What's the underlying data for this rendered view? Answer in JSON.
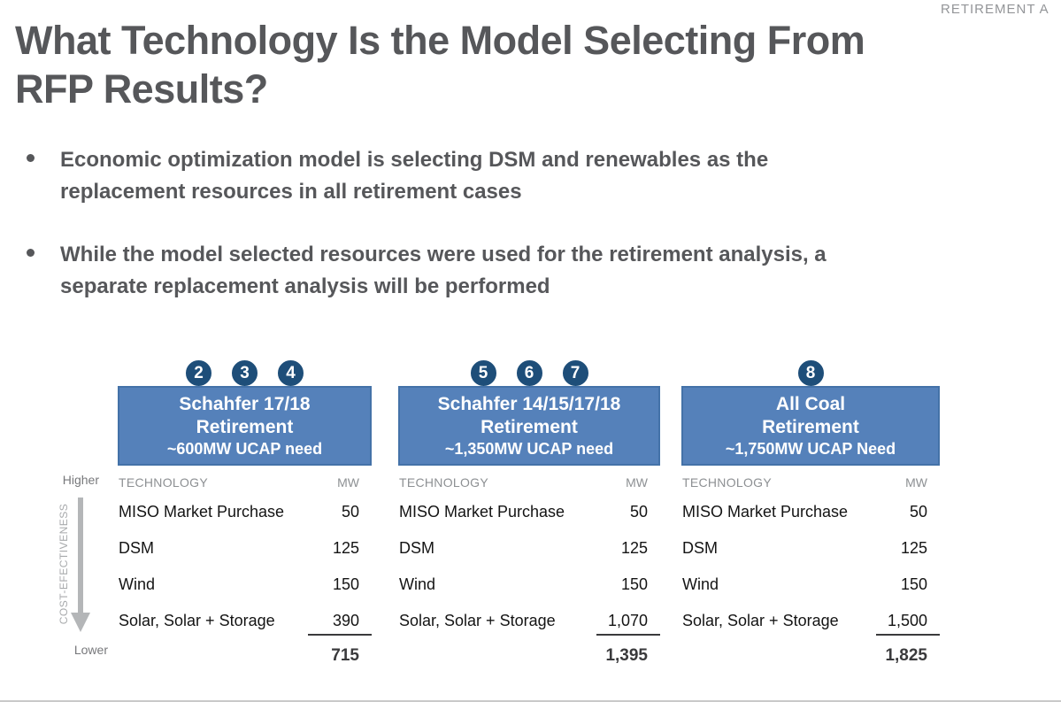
{
  "corner_label": "RETIREMENT A",
  "title": {
    "line1": "What Technology Is the Model Selecting From",
    "line2": "RFP Results?"
  },
  "bullets": [
    {
      "line1": "Economic optimization model is selecting DSM and renewables as the",
      "line2": "replacement resources in all retirement cases",
      "full_text": "Economic optimization model is selecting DSM and renewables as the replacement resources in all retirement cases"
    },
    {
      "line1": "While the model selected resources were used for the retirement analysis, a",
      "line2": "separate replacement analysis will be performed",
      "full_text": "While the model selected resources were used for the retirement analysis, a separate replacement analysis will be performed"
    }
  ],
  "axis": {
    "higher": "Higher",
    "lower": "Lower",
    "vertical_label": "COST-EFECTIVENESS"
  },
  "colors": {
    "header_blue": "#5581ba",
    "header_blue_border": "#4472a8",
    "badge_navy": "#1e4e79",
    "title_gray": "#56575a",
    "muted_gray": "#8d9093"
  },
  "tables": [
    {
      "badges": [
        "2",
        "3",
        "4"
      ],
      "header": {
        "line1": "Schahfer 17/18",
        "line2": "Retirement",
        "line3": "~600MW UCAP need"
      },
      "col_headers": {
        "technology": "TECHNOLOGY",
        "mw": "MW"
      },
      "rows": [
        {
          "technology": "MISO Market Purchase",
          "mw": "50"
        },
        {
          "technology": "DSM",
          "mw": "125"
        },
        {
          "technology": "Wind",
          "mw": "150"
        },
        {
          "technology": "Solar, Solar + Storage",
          "mw": "390"
        }
      ],
      "total": "715"
    },
    {
      "badges": [
        "5",
        "6",
        "7"
      ],
      "header": {
        "line1": "Schahfer 14/15/17/18",
        "line2": "Retirement",
        "line3": "~1,350MW UCAP need"
      },
      "col_headers": {
        "technology": "TECHNOLOGY",
        "mw": "MW"
      },
      "rows": [
        {
          "technology": "MISO Market Purchase",
          "mw": "50"
        },
        {
          "technology": "DSM",
          "mw": "125"
        },
        {
          "technology": "Wind",
          "mw": "150"
        },
        {
          "technology": "Solar, Solar + Storage",
          "mw": "1,070"
        }
      ],
      "total": "1,395"
    },
    {
      "badges": [
        "8"
      ],
      "header": {
        "line1": "All Coal",
        "line2": "Retirement",
        "line3": "~1,750MW UCAP Need"
      },
      "col_headers": {
        "technology": "TECHNOLOGY",
        "mw": "MW"
      },
      "rows": [
        {
          "technology": "MISO Market Purchase",
          "mw": "50"
        },
        {
          "technology": "DSM",
          "mw": "125"
        },
        {
          "technology": "Wind",
          "mw": "150"
        },
        {
          "technology": "Solar, Solar + Storage",
          "mw": "1,500"
        }
      ],
      "total": "1,825"
    }
  ]
}
